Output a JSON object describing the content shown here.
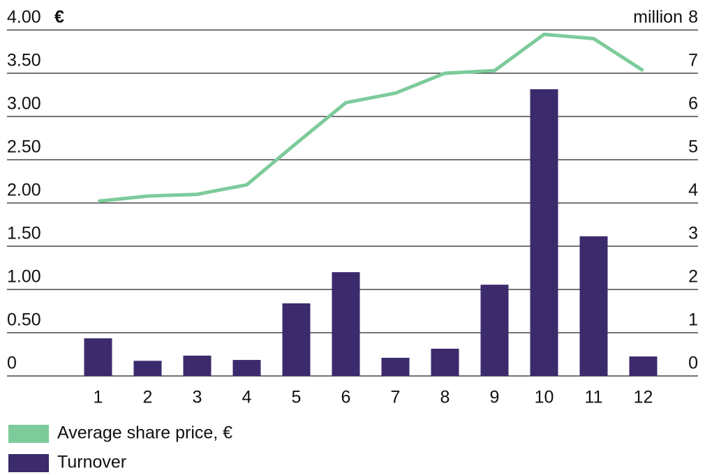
{
  "chart_data": {
    "type": "bar",
    "y_label": "€",
    "y2_label": "million",
    "categories": [
      "1",
      "2",
      "3",
      "4",
      "5",
      "6",
      "7",
      "8",
      "9",
      "10",
      "11",
      "12"
    ],
    "series": [
      {
        "name": "Average share price, €",
        "type": "line",
        "color": "#7dcb9b",
        "axis": "y",
        "values": [
          2.02,
          2.08,
          2.1,
          2.21,
          2.69,
          3.16,
          3.27,
          3.5,
          3.53,
          3.95,
          3.9,
          3.53
        ]
      },
      {
        "name": "Turnover",
        "type": "bar",
        "color": "#3b2a6c",
        "axis": "y2",
        "values": [
          0.87,
          0.35,
          0.47,
          0.37,
          1.68,
          2.4,
          0.42,
          0.63,
          2.11,
          6.63,
          3.23,
          0.45
        ]
      }
    ],
    "ylim": [
      0,
      4
    ],
    "yticks": [
      0,
      {
        "value": 0.5,
        "label": "0.50"
      },
      {
        "value": 1,
        "label": "1.00"
      },
      {
        "value": 1.5,
        "label": "1.50"
      },
      {
        "value": 2,
        "label": "2.00"
      },
      {
        "value": 2.5,
        "label": "2.50"
      },
      {
        "value": 3,
        "label": "3.00"
      },
      {
        "value": 3.5,
        "label": "3.50"
      },
      {
        "value": 4,
        "label": "4.00"
      }
    ],
    "y2lim": [
      0,
      8
    ],
    "y2ticks": [
      0,
      1,
      2,
      3,
      4,
      5,
      6,
      7,
      8
    ],
    "grid": true
  }
}
